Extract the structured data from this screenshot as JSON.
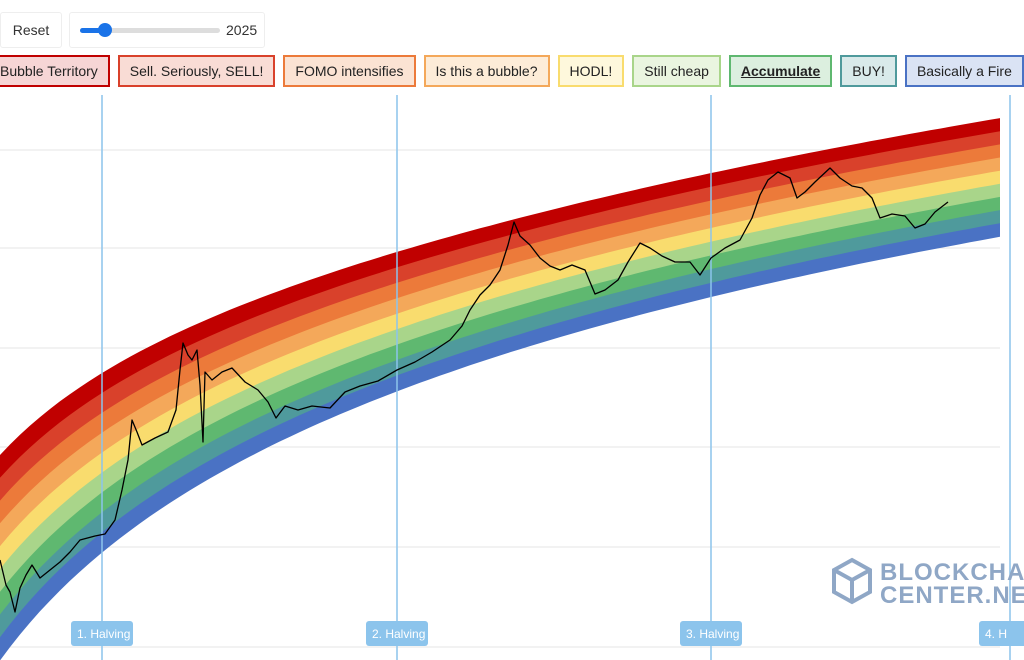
{
  "controls": {
    "reset": "Reset",
    "slider_value": "2025"
  },
  "bands": [
    {
      "label": "Bubble Territory",
      "color": "#c00000",
      "bg": "#f6d5d5"
    },
    {
      "label": "Sell. Seriously, SELL!",
      "color": "#d9412b",
      "bg": "#f9dcd5"
    },
    {
      "label": "FOMO intensifies",
      "color": "#ec7a3a",
      "bg": "#fbe3d3"
    },
    {
      "label": "Is this a bubble?",
      "color": "#f4a85a",
      "bg": "#fdecd8"
    },
    {
      "label": "HODL!",
      "color": "#f9dc6e",
      "bg": "#fef8dc"
    },
    {
      "label": "Still cheap",
      "color": "#a9d58a",
      "bg": "#eaf5e0"
    },
    {
      "label": "Accumulate",
      "color": "#5fb870",
      "bg": "#dcefdf"
    },
    {
      "label": "BUY!",
      "color": "#4f9a9c",
      "bg": "#d9eaea"
    },
    {
      "label": "Basically a Fire",
      "color": "#4a72c4",
      "bg": "#dae3f4"
    }
  ],
  "halvings": [
    "1. Halving",
    "2. Halving",
    "3. Halving",
    "4. H"
  ],
  "watermark": {
    "line1": "BLOCKCHA",
    "line2": "CENTER.NE"
  }
}
